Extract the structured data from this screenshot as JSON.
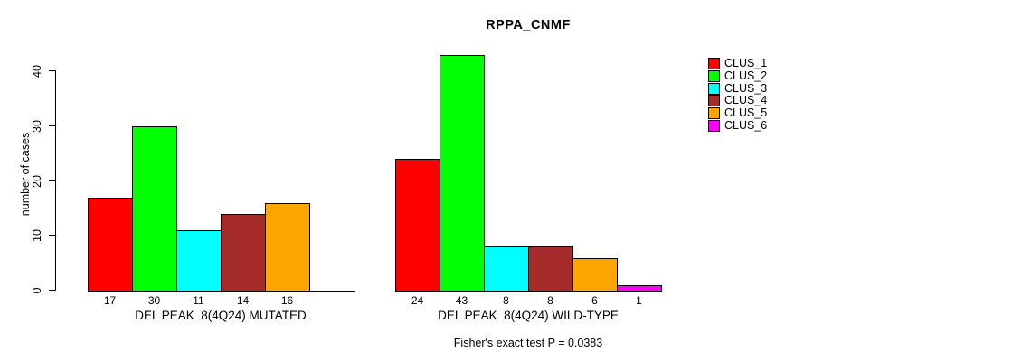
{
  "chart_data": {
    "type": "bar",
    "title": "RPPA_CNMF",
    "ylabel": "number of cases",
    "yticks": [
      0,
      10,
      20,
      30,
      40
    ],
    "ylim": [
      0,
      43
    ],
    "grid": false,
    "legend_position": "right-outside",
    "clusters": [
      {
        "name": "CLUS_1",
        "color": "#FF0000"
      },
      {
        "name": "CLUS_2",
        "color": "#00FF00"
      },
      {
        "name": "CLUS_3",
        "color": "#00FFFF"
      },
      {
        "name": "CLUS_4",
        "color": "#A52A2A"
      },
      {
        "name": "CLUS_5",
        "color": "#FFA500"
      },
      {
        "name": "CLUS_6",
        "color": "#FF00FF"
      }
    ],
    "groups": [
      {
        "label": "DEL PEAK  8(4Q24) MUTATED",
        "values": [
          17,
          30,
          11,
          14,
          16,
          0
        ]
      },
      {
        "label": "DEL PEAK  8(4Q24) WILD-TYPE",
        "values": [
          24,
          43,
          8,
          8,
          6,
          1
        ]
      }
    ],
    "footnote": "Fisher's exact test P = 0.0383"
  }
}
